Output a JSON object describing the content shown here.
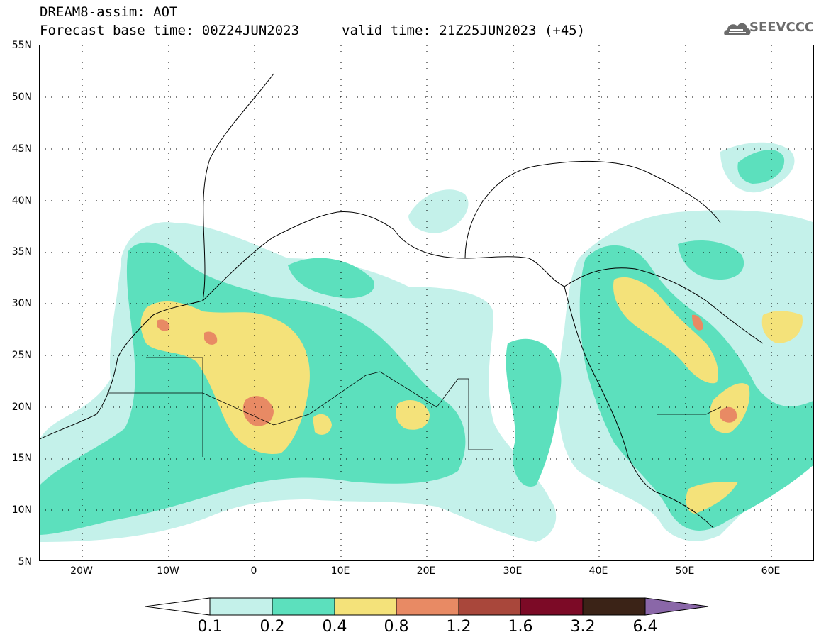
{
  "header": {
    "title_line1": "DREAM8-assim: AOT",
    "title_line2": "Forecast base time: 00Z24JUN2023",
    "valid_time": "valid time: 21Z25JUN2023 (+45)",
    "logo_text": "SEEVCCC",
    "logo_icon": "cloud-icon"
  },
  "map": {
    "lat_labels": [
      "55N",
      "50N",
      "45N",
      "40N",
      "35N",
      "30N",
      "25N",
      "20N",
      "15N",
      "10N",
      "5N"
    ],
    "lon_labels": [
      "20W",
      "10W",
      "0",
      "10E",
      "20E",
      "30E",
      "40E",
      "50E",
      "60E"
    ],
    "colors": {
      "c01": "#c4f1ea",
      "c02": "#5ce0bd",
      "c04": "#f4e27a",
      "c08": "#e88a64",
      "c12": "#a9473b",
      "c16": "#7c0a26",
      "c32": "#3b2317",
      "c64": "#8a67a8"
    }
  },
  "colorbar": {
    "labels": [
      "0.1",
      "0.2",
      "0.4",
      "0.8",
      "1.2",
      "1.6",
      "3.2",
      "6.4"
    ],
    "colors": [
      "#c4f1ea",
      "#5ce0bd",
      "#f4e27a",
      "#e88a64",
      "#a9473b",
      "#7c0a26",
      "#3b2317"
    ],
    "over_color": "#8a67a8"
  }
}
